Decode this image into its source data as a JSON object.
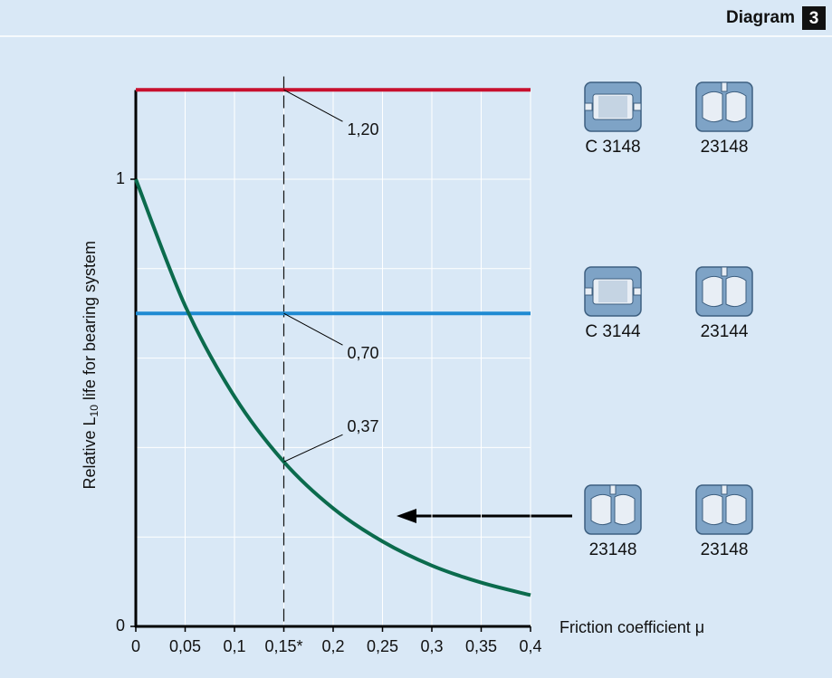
{
  "header": {
    "title": "Diagram",
    "number": "3"
  },
  "chart_data": {
    "type": "line",
    "ylabel": {
      "pre": "Relative L",
      "sub": "10",
      "post": " life for bearing system"
    },
    "xlabel": "Friction coefficient μ",
    "xlim": [
      0,
      0.4
    ],
    "ylim": [
      0,
      1.25
    ],
    "xticks": [
      0,
      {
        "value": 0.05,
        "label": "0,05"
      },
      {
        "value": 0.1,
        "label": "0,1"
      },
      {
        "value": 0.15,
        "label": "0,15*"
      },
      {
        "value": 0.2,
        "label": "0,2"
      },
      {
        "value": 0.25,
        "label": "0,25"
      },
      {
        "value": 0.3,
        "label": "0,3"
      },
      {
        "value": 0.35,
        "label": "0,35"
      },
      {
        "value": 0.4,
        "label": "0,4"
      }
    ],
    "yticks": [
      0,
      1
    ],
    "ygrid": [
      0.2,
      0.4,
      0.6,
      0.8,
      1
    ],
    "grid": true,
    "marker_x": 0.15,
    "series": [
      {
        "color": "#c8102e",
        "x": [
          0,
          0.15,
          0.4
        ],
        "values": [
          1.2,
          1.2,
          1.2
        ],
        "value_labels": [
          null,
          "1,20",
          null
        ]
      },
      {
        "color": "#1f8ad2",
        "x": [
          0,
          0.15,
          0.4
        ],
        "values": [
          0.7,
          0.7,
          0.7
        ],
        "value_labels": [
          null,
          "0,70",
          null
        ]
      },
      {
        "color": "#0b6b4d",
        "x": [
          0,
          0.05,
          0.1,
          0.15,
          0.2,
          0.25,
          0.3,
          0.35,
          0.4
        ],
        "values": [
          1,
          0.717,
          0.514,
          0.368,
          0.264,
          0.19,
          0.136,
          0.098,
          0.07
        ],
        "value_labels": [
          null,
          null,
          null,
          "0,37",
          null,
          null,
          null,
          null,
          null
        ]
      }
    ],
    "bearing_labels": [
      [
        "C 3148",
        "23148"
      ],
      [
        "C 3144",
        "23144"
      ],
      [
        "23148",
        "23148"
      ]
    ]
  }
}
